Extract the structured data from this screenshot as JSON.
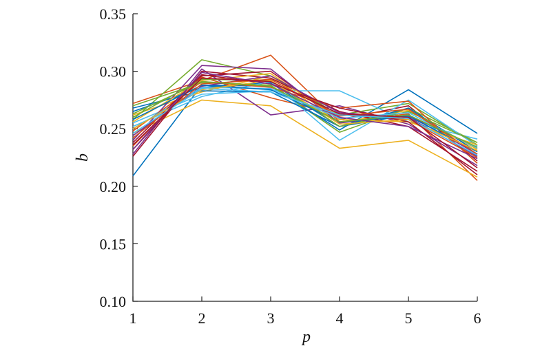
{
  "chart_data": {
    "type": "line",
    "xlabel": "p",
    "ylabel": "b",
    "x": [
      1,
      2,
      3,
      4,
      5,
      6
    ],
    "xlim": [
      1,
      6
    ],
    "ylim": [
      0.1,
      0.35
    ],
    "xticks": [
      "1",
      "2",
      "3",
      "4",
      "5",
      "6"
    ],
    "yticks": [
      "0.10",
      "0.15",
      "0.20",
      "0.25",
      "0.30",
      "0.35"
    ],
    "grid": false,
    "legend": "none",
    "series": [
      {
        "color": "#0072BD",
        "values": [
          0.209,
          0.288,
          0.287,
          0.249,
          0.284,
          0.246
        ]
      },
      {
        "color": "#D95319",
        "values": [
          0.272,
          0.292,
          0.314,
          0.256,
          0.263,
          0.205
        ]
      },
      {
        "color": "#EDB120",
        "values": [
          0.246,
          0.275,
          0.27,
          0.233,
          0.24,
          0.208
        ]
      },
      {
        "color": "#7E2F8E",
        "values": [
          0.228,
          0.302,
          0.262,
          0.27,
          0.254,
          0.218
        ]
      },
      {
        "color": "#77AC30",
        "values": [
          0.258,
          0.31,
          0.296,
          0.262,
          0.272,
          0.236
        ]
      },
      {
        "color": "#4DBEEE",
        "values": [
          0.255,
          0.28,
          0.283,
          0.283,
          0.256,
          0.241
        ]
      },
      {
        "color": "#A2142F",
        "values": [
          0.232,
          0.296,
          0.3,
          0.258,
          0.27,
          0.222
        ]
      },
      {
        "color": "#0072BD",
        "values": [
          0.265,
          0.286,
          0.29,
          0.252,
          0.262,
          0.233
        ]
      },
      {
        "color": "#D95319",
        "values": [
          0.235,
          0.295,
          0.277,
          0.262,
          0.258,
          0.225
        ]
      },
      {
        "color": "#EDB120",
        "values": [
          0.262,
          0.282,
          0.296,
          0.255,
          0.266,
          0.232
        ]
      },
      {
        "color": "#7E2F8E",
        "values": [
          0.24,
          0.305,
          0.302,
          0.255,
          0.262,
          0.228
        ]
      },
      {
        "color": "#77AC30",
        "values": [
          0.27,
          0.29,
          0.288,
          0.247,
          0.268,
          0.238
        ]
      },
      {
        "color": "#4DBEEE",
        "values": [
          0.252,
          0.278,
          0.291,
          0.24,
          0.275,
          0.235
        ]
      },
      {
        "color": "#A2142F",
        "values": [
          0.226,
          0.3,
          0.294,
          0.265,
          0.252,
          0.213
        ]
      },
      {
        "color": "#0072BD",
        "values": [
          0.268,
          0.283,
          0.282,
          0.252,
          0.268,
          0.23
        ]
      },
      {
        "color": "#D95319",
        "values": [
          0.248,
          0.291,
          0.286,
          0.268,
          0.274,
          0.22
        ]
      },
      {
        "color": "#EDB120",
        "values": [
          0.256,
          0.292,
          0.298,
          0.258,
          0.256,
          0.236
        ]
      },
      {
        "color": "#7E2F8E",
        "values": [
          0.244,
          0.287,
          0.296,
          0.264,
          0.26,
          0.226
        ]
      },
      {
        "color": "#77AC30",
        "values": [
          0.26,
          0.293,
          0.292,
          0.252,
          0.265,
          0.238
        ]
      },
      {
        "color": "#4DBEEE",
        "values": [
          0.25,
          0.286,
          0.285,
          0.259,
          0.264,
          0.233
        ]
      },
      {
        "color": "#A2142F",
        "values": [
          0.238,
          0.297,
          0.289,
          0.268,
          0.256,
          0.21
        ]
      },
      {
        "color": "#0072BD",
        "values": [
          0.258,
          0.288,
          0.284,
          0.256,
          0.261,
          0.23
        ]
      },
      {
        "color": "#D95319",
        "values": [
          0.242,
          0.289,
          0.293,
          0.261,
          0.267,
          0.228
        ]
      },
      {
        "color": "#EDB120",
        "values": [
          0.25,
          0.284,
          0.292,
          0.254,
          0.258,
          0.231
        ]
      },
      {
        "color": "#7E2F8E",
        "values": [
          0.232,
          0.299,
          0.289,
          0.26,
          0.252,
          0.224
        ]
      },
      {
        "color": "#77AC30",
        "values": [
          0.263,
          0.291,
          0.287,
          0.256,
          0.262,
          0.234
        ]
      },
      {
        "color": "#4DBEEE",
        "values": [
          0.246,
          0.285,
          0.282,
          0.262,
          0.259,
          0.227
        ]
      },
      {
        "color": "#A2142F",
        "values": [
          0.236,
          0.294,
          0.291,
          0.263,
          0.26,
          0.216
        ]
      }
    ]
  }
}
